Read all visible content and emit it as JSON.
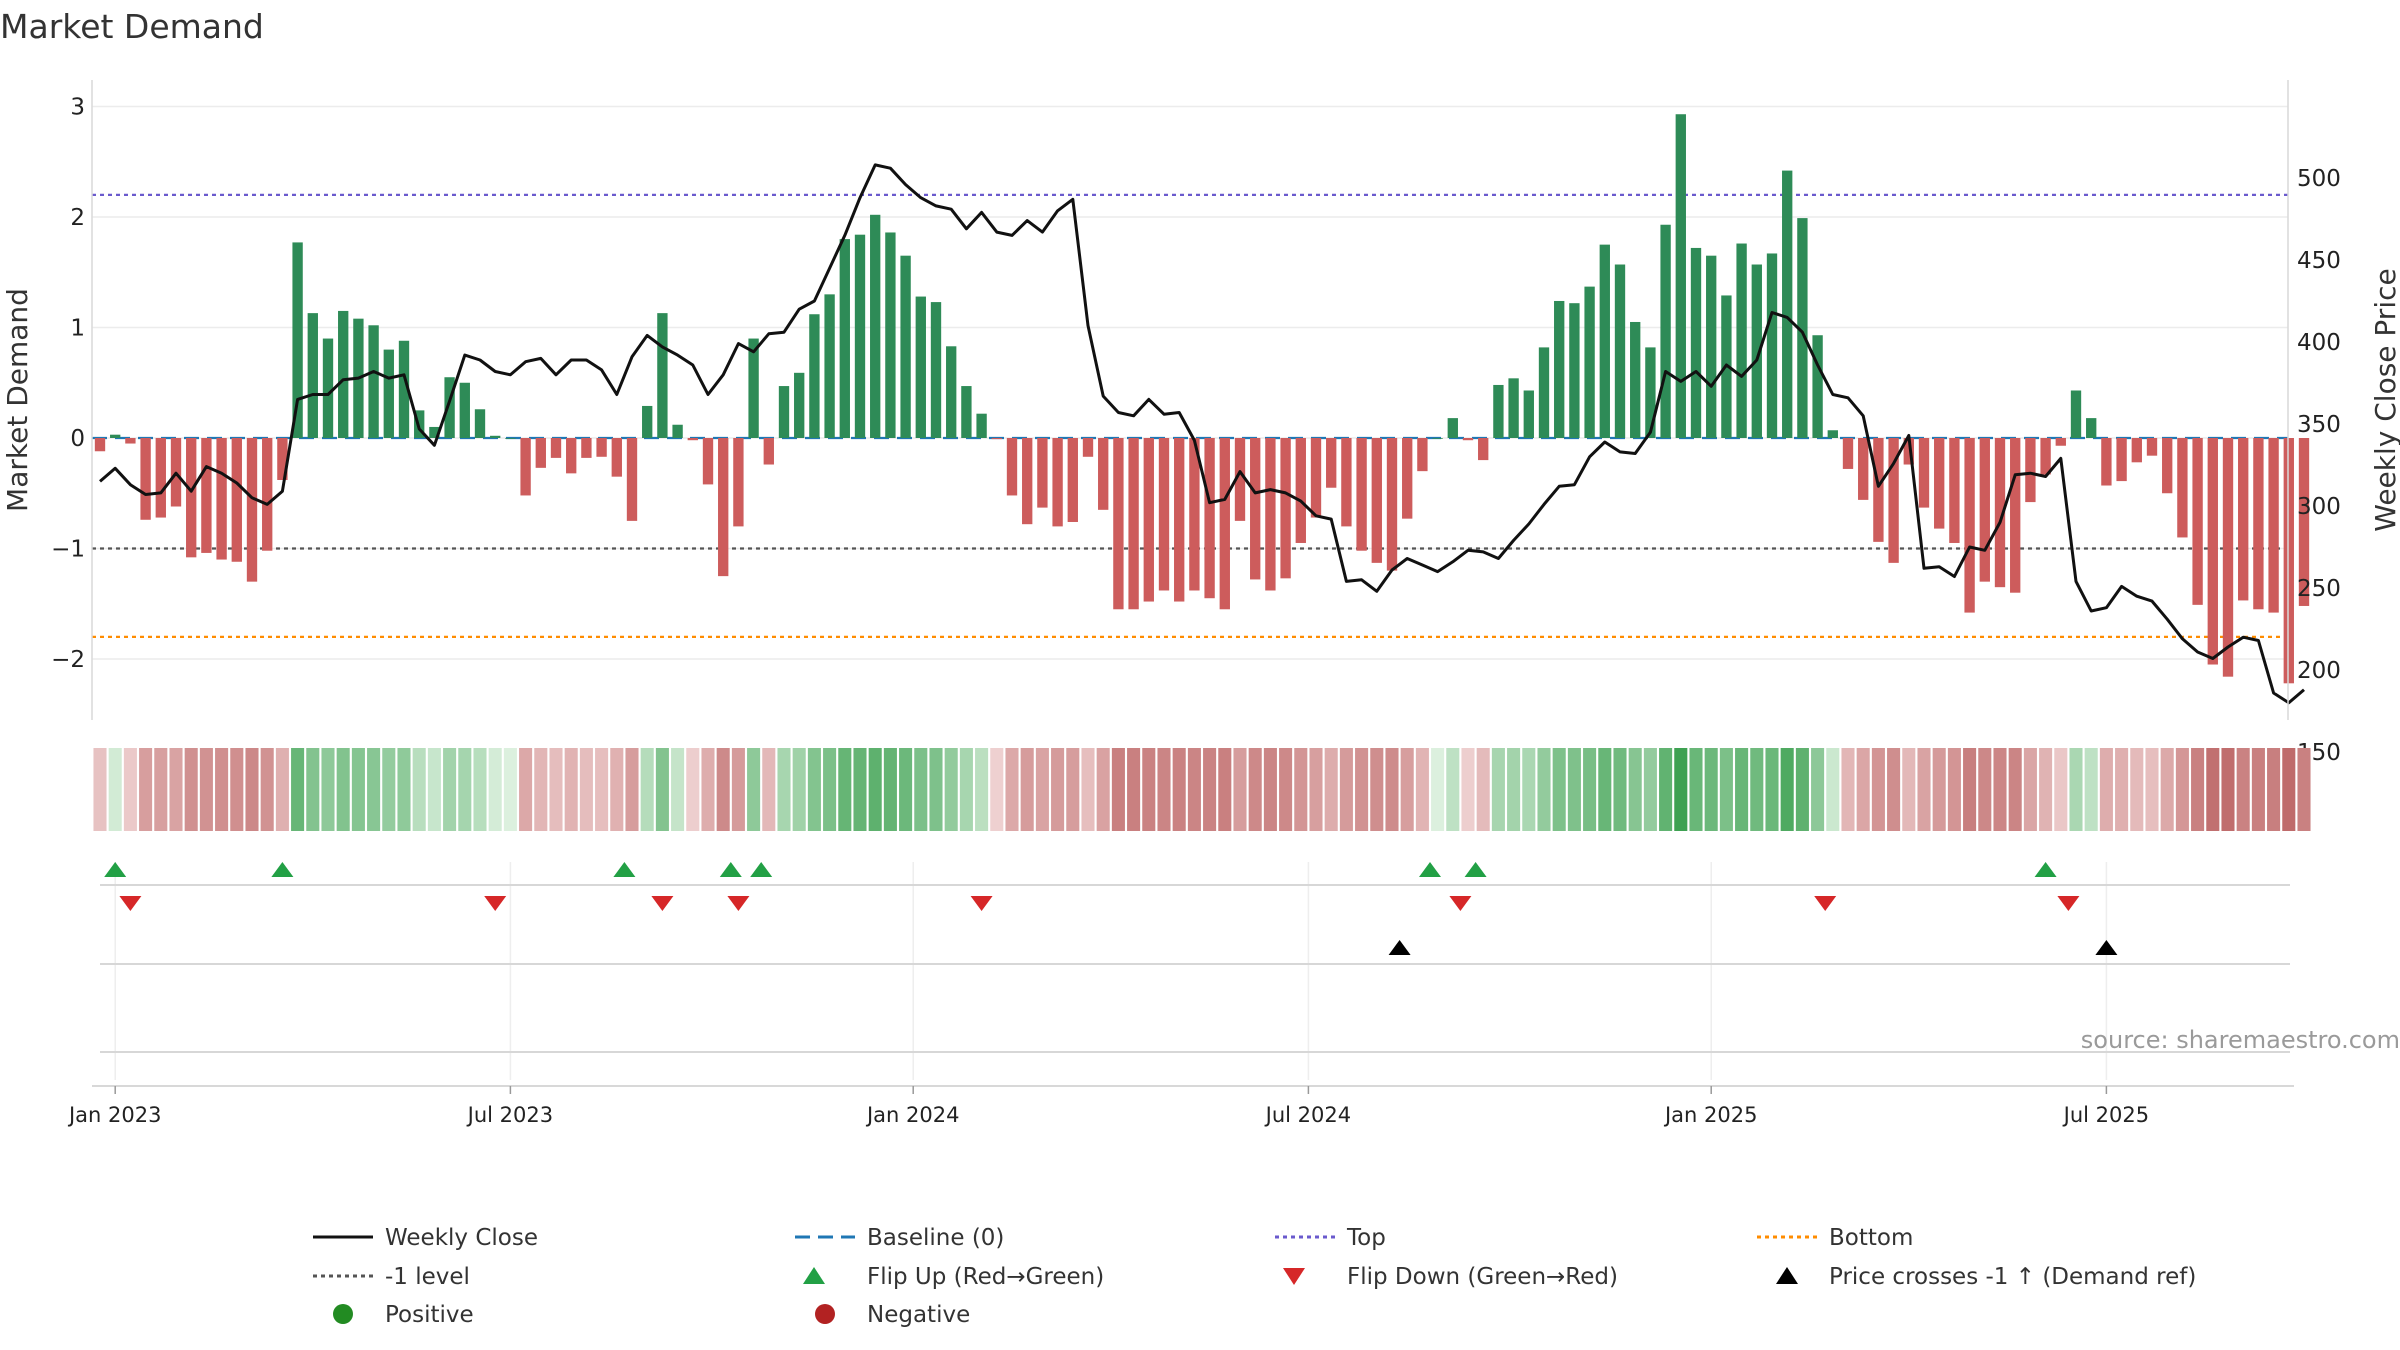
{
  "chart_data": {
    "type": "bar",
    "title": "Market Demand",
    "ylabel": "Market Demand",
    "y2label": "Weekly Close Price",
    "ylim": [
      -2.5,
      3.2
    ],
    "yticks": [
      -2,
      -1,
      0,
      1,
      2,
      3
    ],
    "ytick_labels": [
      "−2",
      "−1",
      "0",
      "1",
      "2",
      "3"
    ],
    "y2lim": [
      139.5,
      550
    ],
    "y2ticks": [
      150,
      200,
      250,
      300,
      350,
      400,
      450,
      500
    ],
    "y2tick_labels": [
      "150",
      "200",
      "250",
      "300",
      "350",
      "400",
      "450",
      "500"
    ],
    "top_level": 2.2,
    "bottom_level": -1.8,
    "minus1_level": -1,
    "x_ticks": [
      {
        "label": "Jan 2023",
        "week": 1
      },
      {
        "label": "Jul 2023",
        "week": 27
      },
      {
        "label": "Jan 2024",
        "week": 53.5
      },
      {
        "label": "Jul 2024",
        "week": 79.5
      },
      {
        "label": "Jan 2025",
        "week": 106
      },
      {
        "label": "Jul 2025",
        "week": 132
      }
    ],
    "series": [
      {
        "name": "Market Demand",
        "type": "bar",
        "values": [
          -0.12,
          0.03,
          -0.05,
          -0.74,
          -0.72,
          -0.62,
          -1.08,
          -1.04,
          -1.1,
          -1.12,
          -1.3,
          -1.02,
          -0.38,
          1.77,
          1.13,
          0.9,
          1.15,
          1.08,
          1.02,
          0.8,
          0.88,
          0.25,
          0.1,
          0.55,
          0.5,
          0.26,
          0.02,
          0,
          -0.52,
          -0.27,
          -0.18,
          -0.32,
          -0.18,
          -0.17,
          -0.35,
          -0.75,
          0.29,
          1.13,
          0.12,
          -0.02,
          -0.42,
          -1.25,
          -0.8,
          0.9,
          -0.24,
          0.47,
          0.59,
          1.12,
          1.3,
          1.8,
          1.84,
          2.02,
          1.86,
          1.65,
          1.28,
          1.23,
          0.83,
          0.47,
          0.22,
          -0.01,
          -0.52,
          -0.78,
          -0.63,
          -0.8,
          -0.76,
          -0.17,
          -0.65,
          -1.55,
          -1.55,
          -1.48,
          -1.38,
          -1.48,
          -1.38,
          -1.45,
          -1.55,
          -0.75,
          -1.28,
          -1.38,
          -1.27,
          -0.95,
          -0.72,
          -0.45,
          -0.8,
          -1.02,
          -1.13,
          -1.2,
          -0.73,
          -0.3,
          0,
          0.18,
          -0.02,
          -0.2,
          0.48,
          0.54,
          0.43,
          0.82,
          1.24,
          1.22,
          1.37,
          1.75,
          1.57,
          1.05,
          0.82,
          1.93,
          2.93,
          1.72,
          1.65,
          1.29,
          1.76,
          1.57,
          1.67,
          2.42,
          1.99,
          0.93,
          0.07,
          -0.28,
          -0.56,
          -0.94,
          -1.13,
          -0.24,
          -0.63,
          -0.82,
          -0.95,
          -1.58,
          -1.3,
          -1.35,
          -1.4,
          -0.58,
          -0.33,
          -0.07,
          0.43,
          0.18,
          -0.43,
          -0.39,
          -0.22,
          -0.16,
          -0.5,
          -0.9,
          -1.51,
          -2.05,
          -2.16,
          -1.47,
          -1.55,
          -1.58,
          -2.22,
          -1.52
        ]
      },
      {
        "name": "Weekly Close",
        "type": "line",
        "values": [
          315,
          323,
          313,
          307,
          308,
          320,
          309,
          324,
          320,
          314,
          305,
          301,
          309,
          365,
          368,
          368,
          377,
          378,
          382,
          378,
          380,
          347,
          337,
          364,
          392,
          389,
          382,
          380,
          388,
          390,
          380,
          389,
          389,
          383,
          368,
          391,
          404,
          397,
          392,
          386,
          368,
          380,
          399,
          394,
          405,
          406,
          420,
          425,
          445,
          465,
          488,
          508,
          506,
          496,
          488,
          483,
          481,
          469,
          479,
          467,
          465,
          474,
          467,
          480,
          487,
          410,
          367,
          357,
          355,
          365,
          356,
          357,
          340,
          302,
          304,
          321,
          308,
          310,
          308,
          303,
          294,
          292,
          254,
          255,
          248,
          261,
          268,
          264,
          260,
          266,
          273,
          272,
          268,
          279,
          289,
          301,
          312,
          313,
          330,
          339,
          333,
          332,
          345,
          382,
          376,
          382,
          373,
          386,
          379,
          389,
          418,
          415,
          406,
          386,
          368,
          366,
          355,
          312,
          326,
          343,
          262,
          263,
          257,
          275,
          273,
          290,
          319,
          320,
          318,
          329,
          254,
          236,
          238,
          251,
          245,
          242,
          231,
          219,
          211,
          207,
          214,
          220,
          218,
          186,
          180,
          188
        ]
      },
      {
        "name": "Baseline (0)",
        "type": "line",
        "values": [
          0
        ]
      },
      {
        "name": "Top",
        "type": "hline",
        "values": [
          2.2
        ]
      },
      {
        "name": "Bottom",
        "type": "hline",
        "values": [
          -1.8
        ]
      },
      {
        "name": "-1 level",
        "type": "hline",
        "values": [
          -1
        ]
      }
    ],
    "flip_up_weeks": [
      1,
      12,
      34.5,
      41.5,
      43.5,
      87.5,
      90.5,
      128
    ],
    "flip_down_weeks": [
      2,
      26,
      37,
      42,
      58,
      89.5,
      113.5,
      129.5
    ],
    "price_cross_weeks": [
      85.5,
      132
    ],
    "legend_position": "bottom",
    "legend": [
      {
        "label": "Weekly Close",
        "key": "solid-black-line"
      },
      {
        "label": "Baseline (0)",
        "key": "dashed-blue-line"
      },
      {
        "label": "Top",
        "key": "dotted-purple-line"
      },
      {
        "label": "Bottom",
        "key": "dotted-orange-line"
      },
      {
        "label": "-1 level",
        "key": "dotted-gray-line"
      },
      {
        "label": "Flip Up (Red→Green)",
        "key": "green-up-triangle"
      },
      {
        "label": "Flip Down (Green→Red)",
        "key": "red-down-triangle"
      },
      {
        "label": "Price crosses -1 ↑ (Demand ref)",
        "key": "black-up-triangle"
      },
      {
        "label": "Positive",
        "key": "green-dot"
      },
      {
        "label": "Negative",
        "key": "red-dot"
      }
    ],
    "source": "source: sharemaestro.com"
  },
  "colors": {
    "positive": "#2e8b57",
    "negative": "#cd5c5c",
    "price_line": "#111111",
    "baseline": "#1f77b4",
    "top": "#6a5acd",
    "bottom": "#ff8c00",
    "minus1": "#555555",
    "flip_up": "#22a045",
    "flip_down": "#d62728",
    "cross": "#000000",
    "positive_dot": "#228b22",
    "negative_dot": "#b22222"
  }
}
